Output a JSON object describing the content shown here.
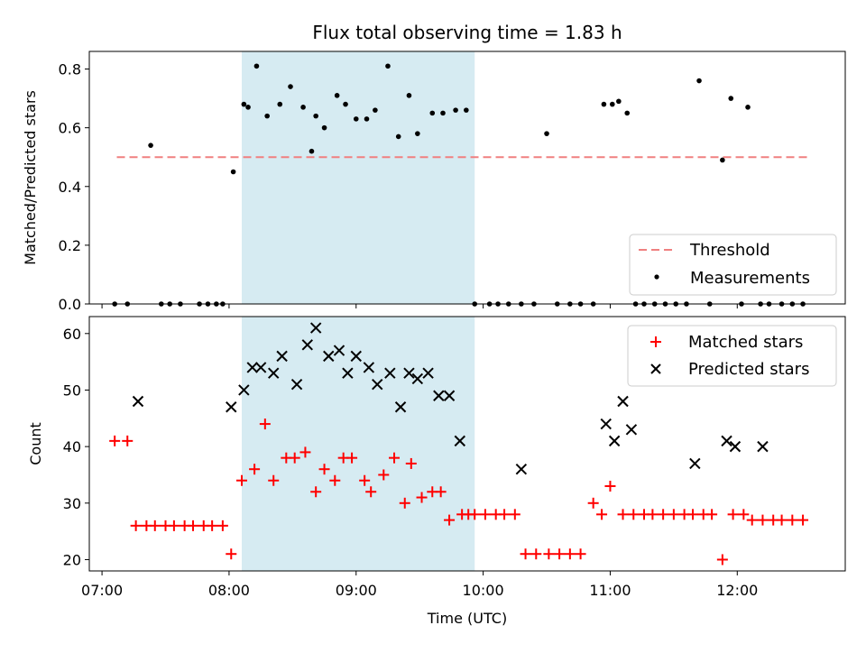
{
  "chart_data": [
    {
      "type": "scatter",
      "title": "Flux total observing time = 1.83 h",
      "xlabel": "",
      "ylabel": "Matched/Predicted stars",
      "ylim": [
        0,
        0.86
      ],
      "xlim": [
        "06:54",
        "12:51"
      ],
      "yticks": [
        "0.0",
        "0.2",
        "0.4",
        "0.6",
        "0.8"
      ],
      "shaded_region": [
        "08:06",
        "09:56"
      ],
      "threshold": {
        "value": 0.5,
        "from": "07:07",
        "to": "12:33",
        "color": "#f08080"
      },
      "legend": {
        "position": "lower-right",
        "entries": [
          "Threshold",
          "Measurements"
        ]
      },
      "series": [
        {
          "name": "Measurements",
          "color": "#000000",
          "x": [
            "07:06",
            "07:12",
            "07:23",
            "07:28",
            "07:32",
            "07:37",
            "07:46",
            "07:50",
            "07:54",
            "07:57",
            "08:02",
            "08:07",
            "08:09",
            "08:13",
            "08:18",
            "08:24",
            "08:29",
            "08:35",
            "08:39",
            "08:41",
            "08:45",
            "08:51",
            "08:55",
            "09:00",
            "09:05",
            "09:09",
            "09:15",
            "09:20",
            "09:25",
            "09:29",
            "09:36",
            "09:41",
            "09:47",
            "09:52",
            "09:56",
            "10:03",
            "10:07",
            "10:12",
            "10:18",
            "10:24",
            "10:30",
            "10:35",
            "10:41",
            "10:46",
            "10:52",
            "10:57",
            "11:01",
            "11:04",
            "11:08",
            "11:12",
            "11:16",
            "11:21",
            "11:26",
            "11:31",
            "11:36",
            "11:42",
            "11:47",
            "11:53",
            "11:57",
            "12:02",
            "12:05",
            "12:11",
            "12:15",
            "12:21",
            "12:26",
            "12:31"
          ],
          "y": [
            0.0,
            0.0,
            0.54,
            0.0,
            0.0,
            0.0,
            0.0,
            0.0,
            0.0,
            0.0,
            0.45,
            0.68,
            0.67,
            0.81,
            0.64,
            0.68,
            0.74,
            0.67,
            0.52,
            0.64,
            0.6,
            0.71,
            0.68,
            0.63,
            0.63,
            0.66,
            0.81,
            0.57,
            0.71,
            0.58,
            0.65,
            0.65,
            0.66,
            0.66,
            0.0,
            0.0,
            0.0,
            0.0,
            0.0,
            0.0,
            0.58,
            0.0,
            0.0,
            0.0,
            0.0,
            0.68,
            0.68,
            0.69,
            0.65,
            0.0,
            0.0,
            0.0,
            0.0,
            0.0,
            0.0,
            0.76,
            0.0,
            0.49,
            0.7,
            0.0,
            0.67,
            0.0,
            0.0,
            0.0,
            0.0,
            0.0
          ]
        }
      ]
    },
    {
      "type": "scatter",
      "title": "",
      "xlabel": "Time (UTC)",
      "ylabel": "Count",
      "ylim": [
        18,
        63
      ],
      "xlim": [
        "06:54",
        "12:51"
      ],
      "xticks": [
        "07:00",
        "08:00",
        "09:00",
        "10:00",
        "11:00",
        "12:00"
      ],
      "yticks": [
        "20",
        "30",
        "40",
        "50",
        "60"
      ],
      "shaded_region": [
        "08:06",
        "09:56"
      ],
      "legend": {
        "position": "upper-right",
        "entries": [
          "Matched stars",
          "Predicted stars"
        ]
      },
      "series": [
        {
          "name": "Matched stars",
          "marker": "plus",
          "color": "#ff0000",
          "x": [
            "07:06",
            "07:12",
            "07:16",
            "07:21",
            "07:25",
            "07:30",
            "07:34",
            "07:39",
            "07:43",
            "07:48",
            "07:52",
            "07:57",
            "08:01",
            "08:06",
            "08:12",
            "08:17",
            "08:21",
            "08:27",
            "08:31",
            "08:36",
            "08:41",
            "08:45",
            "08:50",
            "08:54",
            "08:58",
            "09:04",
            "09:07",
            "09:13",
            "09:18",
            "09:23",
            "09:26",
            "09:31",
            "09:36",
            "09:40",
            "09:44",
            "09:50",
            "09:53",
            "09:56",
            "10:01",
            "10:06",
            "10:10",
            "10:15",
            "10:20",
            "10:25",
            "10:31",
            "10:36",
            "10:41",
            "10:46",
            "10:52",
            "10:56",
            "11:00",
            "11:06",
            "11:11",
            "11:16",
            "11:20",
            "11:25",
            "11:30",
            "11:35",
            "11:39",
            "11:44",
            "11:48",
            "11:53",
            "11:58",
            "12:03",
            "12:07",
            "12:12",
            "12:17",
            "12:21",
            "12:26",
            "12:31"
          ],
          "y": [
            41,
            41,
            26,
            26,
            26,
            26,
            26,
            26,
            26,
            26,
            26,
            26,
            21,
            34,
            36,
            44,
            34,
            38,
            38,
            39,
            32,
            36,
            34,
            38,
            38,
            34,
            32,
            35,
            38,
            30,
            37,
            31,
            32,
            32,
            27,
            28,
            28,
            28,
            28,
            28,
            28,
            28,
            21,
            21,
            21,
            21,
            21,
            21,
            30,
            28,
            33,
            28,
            28,
            28,
            28,
            28,
            28,
            28,
            28,
            28,
            28,
            20,
            28,
            28,
            27,
            27,
            27,
            27,
            27,
            27
          ]
        },
        {
          "name": "Predicted stars",
          "marker": "x",
          "color": "#000000",
          "x": [
            "07:17",
            "08:01",
            "08:07",
            "08:11",
            "08:15",
            "08:21",
            "08:25",
            "08:32",
            "08:37",
            "08:41",
            "08:47",
            "08:52",
            "08:56",
            "09:00",
            "09:06",
            "09:10",
            "09:16",
            "09:21",
            "09:25",
            "09:29",
            "09:34",
            "09:39",
            "09:44",
            "09:49",
            "10:18",
            "10:58",
            "11:02",
            "11:06",
            "11:10",
            "11:40",
            "11:55",
            "11:59",
            "12:12"
          ],
          "y": [
            48,
            47,
            50,
            54,
            54,
            53,
            56,
            51,
            58,
            61,
            56,
            57,
            53,
            56,
            54,
            51,
            53,
            47,
            53,
            52,
            53,
            49,
            49,
            41,
            36,
            44,
            41,
            48,
            43,
            37,
            41,
            40,
            40
          ]
        }
      ]
    }
  ]
}
